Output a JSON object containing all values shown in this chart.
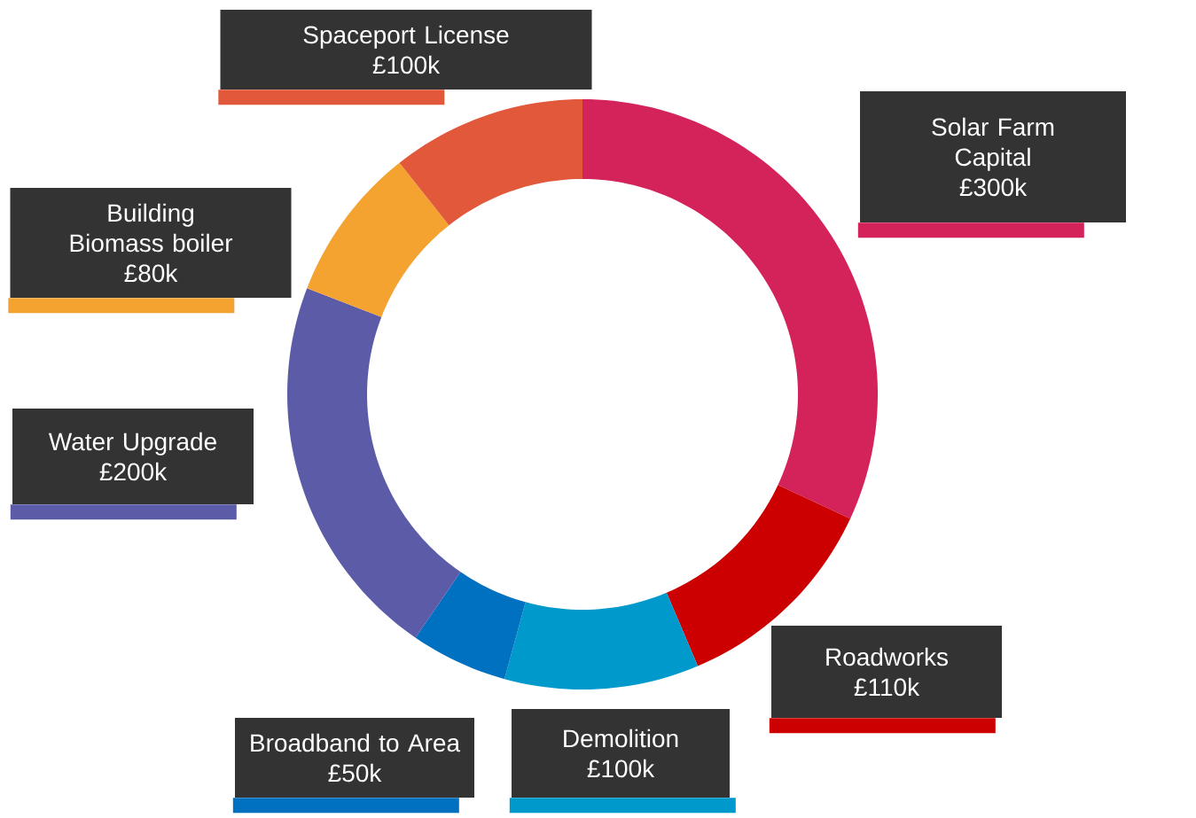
{
  "chart_data": {
    "type": "donut",
    "categories": [
      "Solar Farm Capital",
      "Roadworks",
      "Demolition",
      "Broadband to Area",
      "Water Upgrade",
      "Building Biomass boiler",
      "Spaceport License"
    ],
    "values": [
      300,
      110,
      100,
      50,
      200,
      80,
      100
    ],
    "value_labels": [
      "£300k",
      "£110k",
      "£100k",
      "£50k",
      "£200k",
      "£80k",
      "£100k"
    ],
    "colors": [
      "#d4225a",
      "#cc0000",
      "#0099cc",
      "#0070c0",
      "#5b5ba8",
      "#f4a230",
      "#e2583b"
    ]
  }
}
